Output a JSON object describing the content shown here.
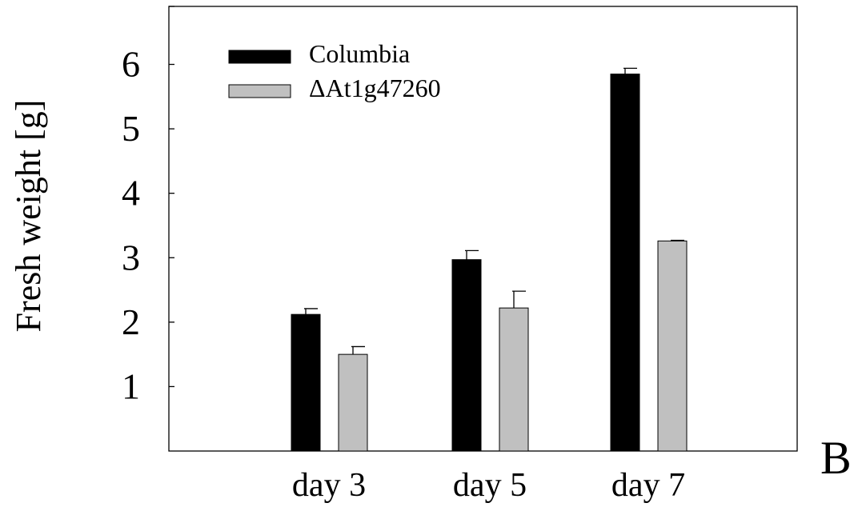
{
  "chart_data": {
    "type": "bar",
    "title": "",
    "xlabel": "",
    "ylabel": "Fresh weight [g]",
    "ylim": [
      0,
      6.9
    ],
    "yticks": [
      1,
      2,
      3,
      4,
      5,
      6
    ],
    "categories": [
      "day 3",
      "day 5",
      "day 7"
    ],
    "series": [
      {
        "name": "Columbia",
        "color": "#000000",
        "values": [
          2.12,
          2.97,
          5.85
        ],
        "errors": [
          0.09,
          0.14,
          0.09
        ]
      },
      {
        "name": "ΔAt1g47260",
        "color": "#c0c0c0",
        "values": [
          1.5,
          2.22,
          3.26
        ],
        "errors": [
          0.12,
          0.26,
          0.01
        ]
      }
    ],
    "legend_position": "top-left",
    "grid": false,
    "panel_label": "B"
  }
}
